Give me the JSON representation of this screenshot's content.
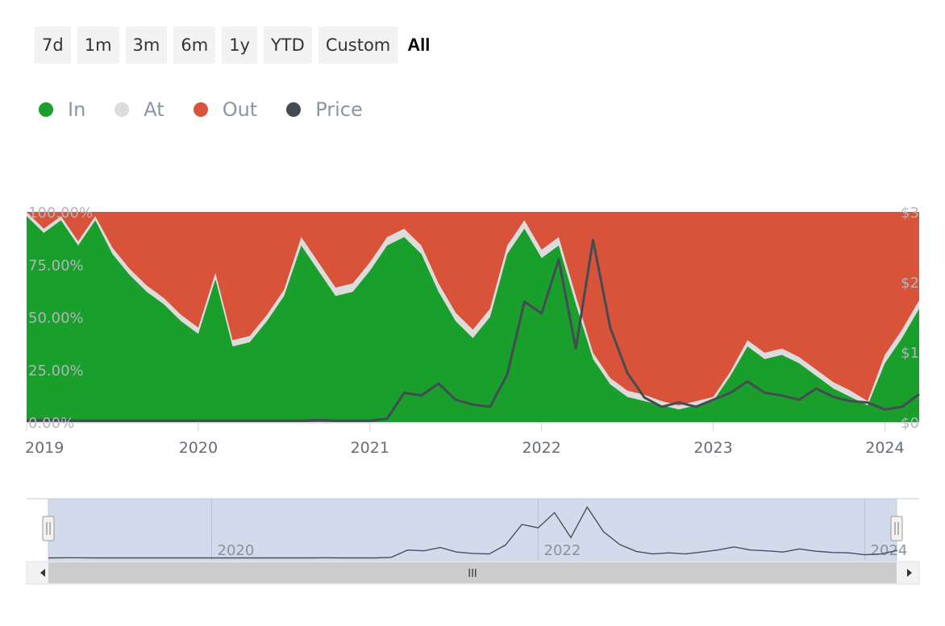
{
  "range_buttons": [
    {
      "label": "7d",
      "active": false
    },
    {
      "label": "1m",
      "active": false
    },
    {
      "label": "3m",
      "active": false
    },
    {
      "label": "6m",
      "active": false
    },
    {
      "label": "1y",
      "active": false
    },
    {
      "label": "YTD",
      "active": false
    },
    {
      "label": "Custom",
      "active": false
    },
    {
      "label": "All",
      "active": true
    }
  ],
  "colors": {
    "in": "#1a9e2c",
    "at": "#dcdcdc",
    "out": "#d9533a",
    "price": "#454b52"
  },
  "chart_data": {
    "type": "area",
    "legend": [
      {
        "name": "In",
        "color": "#1a9e2c"
      },
      {
        "name": "At",
        "color": "#dcdcdc"
      },
      {
        "name": "Out",
        "color": "#d9533a"
      },
      {
        "name": "Price",
        "color": "#454b52"
      }
    ],
    "x": [
      2019.0,
      2019.1,
      2019.2,
      2019.3,
      2019.4,
      2019.5,
      2019.6,
      2019.7,
      2019.8,
      2019.9,
      2020.0,
      2020.1,
      2020.2,
      2020.3,
      2020.4,
      2020.5,
      2020.6,
      2020.7,
      2020.8,
      2020.9,
      2021.0,
      2021.1,
      2021.2,
      2021.3,
      2021.4,
      2021.5,
      2021.6,
      2021.7,
      2021.8,
      2021.9,
      2022.0,
      2022.1,
      2022.2,
      2022.3,
      2022.4,
      2022.5,
      2022.6,
      2022.7,
      2022.8,
      2022.9,
      2023.0,
      2023.1,
      2023.2,
      2023.3,
      2023.4,
      2023.5,
      2023.6,
      2023.7,
      2023.8,
      2023.9,
      2024.0,
      2024.1,
      2024.2
    ],
    "series": [
      {
        "name": "In",
        "values": [
          98,
          90,
          96,
          84,
          96,
          80,
          70,
          62,
          56,
          48,
          42,
          68,
          36,
          38,
          48,
          60,
          84,
          72,
          60,
          62,
          72,
          84,
          88,
          80,
          62,
          48,
          40,
          50,
          80,
          92,
          78,
          84,
          56,
          30,
          18,
          12,
          10,
          8,
          6,
          8,
          10,
          22,
          36,
          30,
          32,
          28,
          22,
          16,
          12,
          8,
          28,
          40,
          54
        ]
      },
      {
        "name": "At",
        "values": [
          2,
          2,
          2,
          2,
          2,
          3,
          3,
          3,
          3,
          3,
          3,
          3,
          3,
          3,
          3,
          3,
          4,
          4,
          4,
          4,
          4,
          4,
          4,
          4,
          4,
          4,
          4,
          4,
          4,
          4,
          4,
          4,
          4,
          3,
          3,
          3,
          3,
          2,
          2,
          2,
          2,
          2,
          3,
          3,
          3,
          3,
          3,
          3,
          3,
          2,
          4,
          4,
          4
        ]
      },
      {
        "name": "Out",
        "values": [
          0,
          8,
          2,
          14,
          2,
          17,
          27,
          35,
          41,
          49,
          55,
          29,
          61,
          59,
          49,
          37,
          12,
          24,
          36,
          34,
          24,
          12,
          8,
          16,
          34,
          48,
          56,
          46,
          16,
          4,
          18,
          12,
          40,
          67,
          79,
          85,
          87,
          90,
          92,
          90,
          88,
          76,
          61,
          67,
          65,
          69,
          75,
          81,
          85,
          90,
          68,
          56,
          42
        ]
      },
      {
        "name": "Price",
        "values": [
          0.02,
          0.03,
          0.03,
          0.02,
          0.02,
          0.02,
          0.02,
          0.02,
          0.02,
          0.02,
          0.02,
          0.02,
          0.02,
          0.02,
          0.02,
          0.02,
          0.02,
          0.03,
          0.02,
          0.02,
          0.02,
          0.05,
          0.42,
          0.38,
          0.55,
          0.32,
          0.25,
          0.22,
          0.68,
          1.72,
          1.55,
          2.32,
          1.05,
          2.6,
          1.35,
          0.7,
          0.35,
          0.22,
          0.28,
          0.22,
          0.32,
          0.42,
          0.58,
          0.42,
          0.38,
          0.32,
          0.48,
          0.36,
          0.3,
          0.28,
          0.18,
          0.22,
          0.4
        ]
      }
    ],
    "x_ticks": [
      "2019",
      "2020",
      "2021",
      "2022",
      "2023",
      "2024"
    ],
    "y_ticks_left": [
      "0.00%",
      "25.00%",
      "50.00%",
      "75.00%",
      "100.00%"
    ],
    "y_ticks_right": [
      "$0",
      "$1",
      "$2",
      "$3"
    ],
    "ylim_left": [
      0,
      100
    ],
    "ylim_right": [
      0,
      3
    ],
    "xlim": [
      2019.0,
      2024.2
    ],
    "grid": false,
    "legend_position": "top-left"
  },
  "navigator": {
    "labels": [
      "2020",
      "2022",
      "2024"
    ],
    "scroll_left_icon": "arrow-left-icon",
    "scroll_right_icon": "arrow-right-icon",
    "scroll_grip": "III"
  }
}
